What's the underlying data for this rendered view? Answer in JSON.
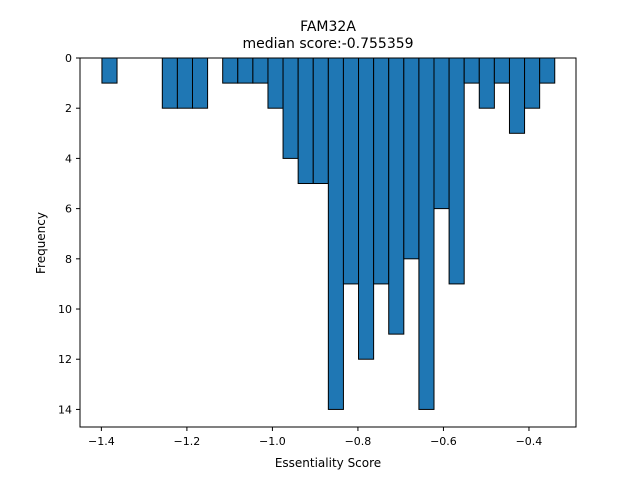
{
  "chart_data": {
    "type": "bar",
    "title": "FAM32A",
    "subtitle": "median score:-0.755359",
    "xlabel": "Essentiality Score",
    "ylabel": "Frequency",
    "xlim": [
      -1.45,
      -0.29
    ],
    "ylim": [
      0,
      14.7
    ],
    "y_inverted": true,
    "bin_width": 0.0353,
    "bar_color": "#1f77b4",
    "edge_color": "#000000",
    "xticks": [
      -1.4,
      -1.2,
      -1.0,
      -0.8,
      -0.6,
      -0.4
    ],
    "xtick_labels": [
      "−1.4",
      "−1.2",
      "−1.0",
      "−0.8",
      "−0.6",
      "−0.4"
    ],
    "yticks": [
      0,
      2,
      4,
      6,
      8,
      10,
      12,
      14
    ],
    "ytick_labels": [
      "0",
      "2",
      "4",
      "6",
      "8",
      "10",
      "12",
      "14"
    ],
    "bins": [
      {
        "x": -1.3987,
        "count": 1
      },
      {
        "x": -1.3634,
        "count": 0
      },
      {
        "x": -1.3281,
        "count": 0
      },
      {
        "x": -1.2928,
        "count": 0
      },
      {
        "x": -1.2575,
        "count": 2
      },
      {
        "x": -1.2222,
        "count": 2
      },
      {
        "x": -1.1869,
        "count": 2
      },
      {
        "x": -1.1516,
        "count": 0
      },
      {
        "x": -1.1163,
        "count": 1
      },
      {
        "x": -1.081,
        "count": 1
      },
      {
        "x": -1.0457,
        "count": 1
      },
      {
        "x": -1.0104,
        "count": 2
      },
      {
        "x": -0.9751,
        "count": 4
      },
      {
        "x": -0.9398,
        "count": 5
      },
      {
        "x": -0.9045,
        "count": 5
      },
      {
        "x": -0.8692,
        "count": 14
      },
      {
        "x": -0.8339,
        "count": 9
      },
      {
        "x": -0.7986,
        "count": 12
      },
      {
        "x": -0.7633,
        "count": 9
      },
      {
        "x": -0.728,
        "count": 11
      },
      {
        "x": -0.6927,
        "count": 8
      },
      {
        "x": -0.6574,
        "count": 14
      },
      {
        "x": -0.6221,
        "count": 6
      },
      {
        "x": -0.5868,
        "count": 9
      },
      {
        "x": -0.5515,
        "count": 1
      },
      {
        "x": -0.5162,
        "count": 2
      },
      {
        "x": -0.4809,
        "count": 1
      },
      {
        "x": -0.4456,
        "count": 3
      },
      {
        "x": -0.4103,
        "count": 2
      },
      {
        "x": -0.375,
        "count": 1
      }
    ]
  }
}
